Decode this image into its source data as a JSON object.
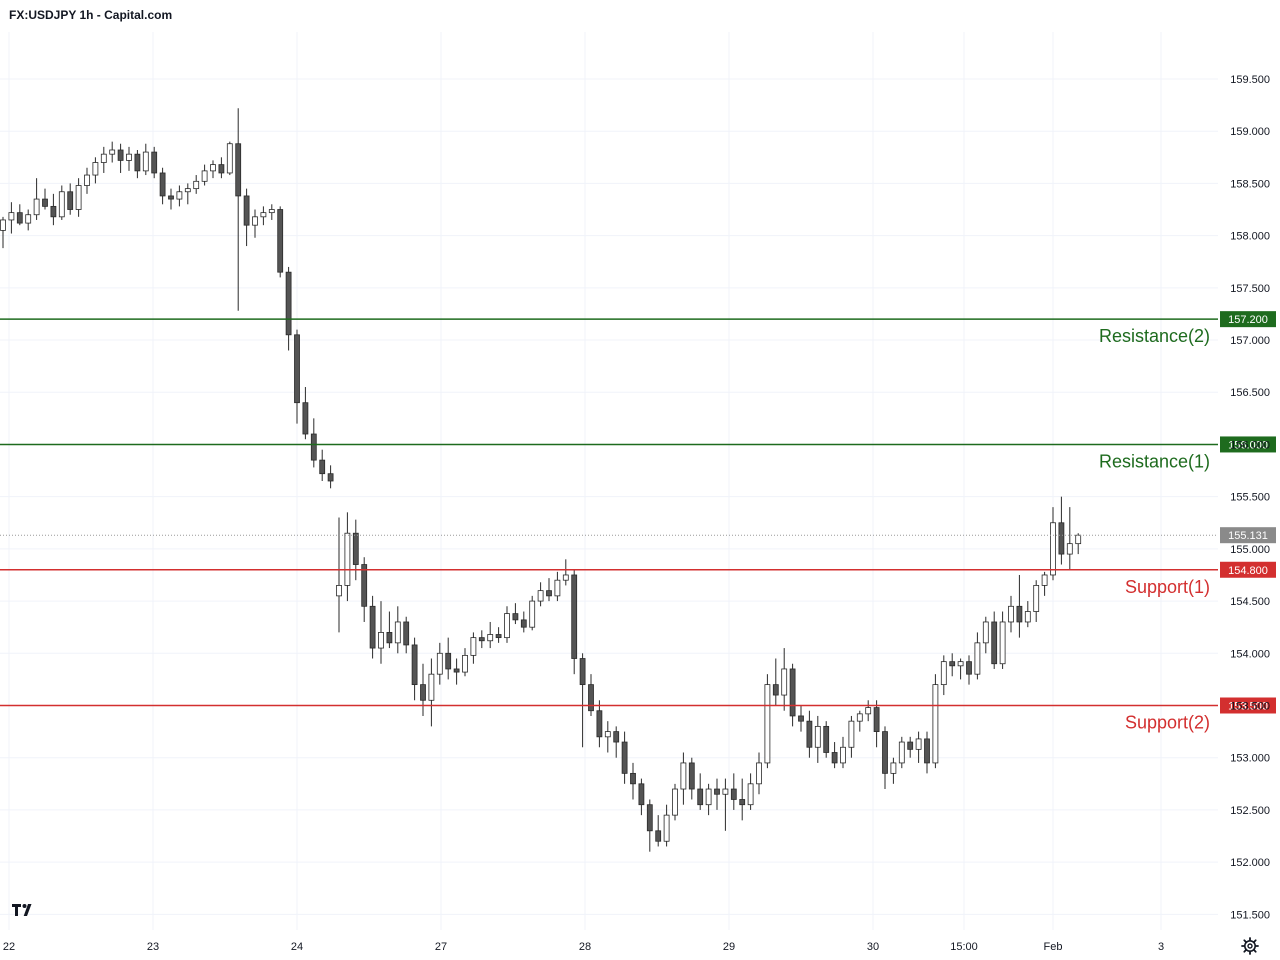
{
  "header": {
    "title": "FX:USDJPY 1h - Capital.com"
  },
  "colors": {
    "resistance": "#1e6b1e",
    "support": "#d32f2f",
    "candle_up_body": "#ffffff",
    "candle_down_body": "#545454",
    "wick": "#2a2a2a",
    "last_price_bg": "#8a8a8a",
    "grid": "#f0f3fa"
  },
  "chart_data": {
    "type": "candlestick",
    "title": "FX:USDJPY 1h - Capital.com",
    "ylim": [
      151.35,
      159.95
    ],
    "y_ticks": [
      "151.500",
      "152.000",
      "152.500",
      "153.000",
      "153.500",
      "154.000",
      "154.500",
      "155.000",
      "155.500",
      "156.000",
      "156.500",
      "157.000",
      "157.500",
      "158.000",
      "158.500",
      "159.000",
      "159.500"
    ],
    "x_ticks": [
      "22",
      "23",
      "24",
      "27",
      "28",
      "29",
      "30",
      "15:00",
      "Feb",
      "3"
    ],
    "grid": true,
    "last_price": "155.131",
    "levels": [
      {
        "name": "Resistance(2)",
        "value": 157.2,
        "value_label": "157.200",
        "kind": "resistance"
      },
      {
        "name": "Resistance(1)",
        "value": 156.0,
        "value_label": "156.000",
        "kind": "resistance"
      },
      {
        "name": "Support(1)",
        "value": 154.8,
        "value_label": "154.800",
        "kind": "support"
      },
      {
        "name": "Support(2)",
        "value": 153.5,
        "value_label": "153.500",
        "kind": "support"
      }
    ],
    "candles": [
      [
        158.05,
        158.18,
        157.88,
        158.15
      ],
      [
        158.15,
        158.32,
        158.02,
        158.22
      ],
      [
        158.22,
        158.3,
        158.1,
        158.12
      ],
      [
        158.12,
        158.25,
        158.05,
        158.2
      ],
      [
        158.2,
        158.55,
        158.15,
        158.35
      ],
      [
        158.35,
        158.45,
        158.25,
        158.28
      ],
      [
        158.28,
        158.4,
        158.1,
        158.18
      ],
      [
        158.18,
        158.48,
        158.15,
        158.42
      ],
      [
        158.42,
        158.5,
        158.2,
        158.25
      ],
      [
        158.25,
        158.55,
        158.18,
        158.48
      ],
      [
        158.48,
        158.65,
        158.4,
        158.58
      ],
      [
        158.58,
        158.75,
        158.5,
        158.7
      ],
      [
        158.7,
        158.85,
        158.6,
        158.78
      ],
      [
        158.78,
        158.9,
        158.7,
        158.82
      ],
      [
        158.82,
        158.88,
        158.6,
        158.72
      ],
      [
        158.72,
        158.85,
        158.62,
        158.78
      ],
      [
        158.78,
        158.82,
        158.55,
        158.62
      ],
      [
        158.62,
        158.88,
        158.58,
        158.8
      ],
      [
        158.8,
        158.85,
        158.55,
        158.6
      ],
      [
        158.6,
        158.65,
        158.3,
        158.38
      ],
      [
        158.38,
        158.45,
        158.25,
        158.35
      ],
      [
        158.35,
        158.48,
        158.28,
        158.42
      ],
      [
        158.42,
        158.5,
        158.3,
        158.45
      ],
      [
        158.45,
        158.58,
        158.4,
        158.52
      ],
      [
        158.52,
        158.68,
        158.48,
        158.62
      ],
      [
        158.62,
        158.72,
        158.55,
        158.68
      ],
      [
        158.68,
        158.75,
        158.55,
        158.6
      ],
      [
        158.6,
        158.9,
        158.58,
        158.88
      ],
      [
        158.88,
        159.22,
        157.28,
        158.38
      ],
      [
        158.38,
        158.45,
        157.9,
        158.1
      ],
      [
        158.1,
        158.25,
        157.98,
        158.18
      ],
      [
        158.18,
        158.28,
        158.1,
        158.22
      ],
      [
        158.22,
        158.3,
        158.15,
        158.25
      ],
      [
        158.25,
        158.28,
        157.6,
        157.65
      ],
      [
        157.65,
        157.7,
        156.9,
        157.05
      ],
      [
        157.05,
        157.1,
        156.2,
        156.4
      ],
      [
        156.4,
        156.55,
        156.05,
        156.1
      ],
      [
        156.1,
        156.25,
        155.78,
        155.85
      ],
      [
        155.85,
        155.95,
        155.65,
        155.72
      ],
      [
        155.72,
        155.8,
        155.58,
        155.65
      ],
      [
        154.55,
        155.3,
        154.2,
        154.65
      ],
      [
        154.65,
        155.35,
        154.5,
        155.15
      ],
      [
        155.15,
        155.28,
        154.7,
        154.85
      ],
      [
        154.85,
        154.92,
        154.3,
        154.45
      ],
      [
        154.45,
        154.55,
        153.95,
        154.05
      ],
      [
        154.05,
        154.5,
        153.9,
        154.2
      ],
      [
        154.2,
        154.4,
        154.05,
        154.1
      ],
      [
        154.1,
        154.45,
        154.0,
        154.3
      ],
      [
        154.3,
        154.35,
        154.0,
        154.08
      ],
      [
        154.08,
        154.15,
        153.55,
        153.7
      ],
      [
        153.7,
        153.9,
        153.4,
        153.55
      ],
      [
        153.55,
        153.95,
        153.3,
        153.8
      ],
      [
        153.8,
        154.1,
        153.7,
        154.0
      ],
      [
        154.0,
        154.15,
        153.75,
        153.85
      ],
      [
        153.85,
        153.95,
        153.7,
        153.82
      ],
      [
        153.82,
        154.05,
        153.78,
        153.98
      ],
      [
        153.98,
        154.2,
        153.9,
        154.15
      ],
      [
        154.15,
        154.22,
        154.05,
        154.12
      ],
      [
        154.12,
        154.3,
        154.05,
        154.18
      ],
      [
        154.18,
        154.25,
        154.1,
        154.15
      ],
      [
        154.15,
        154.45,
        154.1,
        154.38
      ],
      [
        154.38,
        154.48,
        154.28,
        154.32
      ],
      [
        154.32,
        154.4,
        154.2,
        154.25
      ],
      [
        154.25,
        154.55,
        154.22,
        154.5
      ],
      [
        154.5,
        154.68,
        154.45,
        154.6
      ],
      [
        154.6,
        154.72,
        154.5,
        154.55
      ],
      [
        154.55,
        154.78,
        154.5,
        154.7
      ],
      [
        154.7,
        154.9,
        154.65,
        154.75
      ],
      [
        154.75,
        154.8,
        153.8,
        153.95
      ],
      [
        153.95,
        154.0,
        153.1,
        153.7
      ],
      [
        153.7,
        153.8,
        153.4,
        153.45
      ],
      [
        153.45,
        153.55,
        153.1,
        153.2
      ],
      [
        153.2,
        153.35,
        153.05,
        153.25
      ],
      [
        153.25,
        153.3,
        153.0,
        153.15
      ],
      [
        153.15,
        153.25,
        152.75,
        152.85
      ],
      [
        152.85,
        152.95,
        152.6,
        152.75
      ],
      [
        152.75,
        152.8,
        152.45,
        152.55
      ],
      [
        152.55,
        152.6,
        152.1,
        152.3
      ],
      [
        152.3,
        152.45,
        152.15,
        152.2
      ],
      [
        152.2,
        152.55,
        152.15,
        152.45
      ],
      [
        152.45,
        152.75,
        152.4,
        152.7
      ],
      [
        152.7,
        153.05,
        152.55,
        152.95
      ],
      [
        152.95,
        153.0,
        152.6,
        152.7
      ],
      [
        152.7,
        152.85,
        152.5,
        152.55
      ],
      [
        152.55,
        152.75,
        152.45,
        152.7
      ],
      [
        152.7,
        152.8,
        152.5,
        152.65
      ],
      [
        152.65,
        152.8,
        152.3,
        152.7
      ],
      [
        152.7,
        152.85,
        152.5,
        152.6
      ],
      [
        152.6,
        152.8,
        152.4,
        152.55
      ],
      [
        152.55,
        152.85,
        152.5,
        152.75
      ],
      [
        152.75,
        153.05,
        152.65,
        152.95
      ],
      [
        152.95,
        153.8,
        152.9,
        153.7
      ],
      [
        153.7,
        153.95,
        153.5,
        153.6
      ],
      [
        153.6,
        154.05,
        153.45,
        153.85
      ],
      [
        153.85,
        153.9,
        153.3,
        153.4
      ],
      [
        153.4,
        153.5,
        153.25,
        153.35
      ],
      [
        153.35,
        153.45,
        153.0,
        153.1
      ],
      [
        153.1,
        153.4,
        152.95,
        153.3
      ],
      [
        153.3,
        153.35,
        153.0,
        153.05
      ],
      [
        153.05,
        153.15,
        152.9,
        152.95
      ],
      [
        152.95,
        153.2,
        152.9,
        153.1
      ],
      [
        153.1,
        153.4,
        153.0,
        153.35
      ],
      [
        153.35,
        153.45,
        153.25,
        153.42
      ],
      [
        153.42,
        153.55,
        153.35,
        153.48
      ],
      [
        153.48,
        153.55,
        153.1,
        153.25
      ],
      [
        153.25,
        153.3,
        152.7,
        152.85
      ],
      [
        152.85,
        153.0,
        152.75,
        152.95
      ],
      [
        152.95,
        153.2,
        152.9,
        153.15
      ],
      [
        153.15,
        153.2,
        153.0,
        153.08
      ],
      [
        153.08,
        153.25,
        152.95,
        153.18
      ],
      [
        153.18,
        153.25,
        152.85,
        152.95
      ],
      [
        152.95,
        153.8,
        152.9,
        153.7
      ],
      [
        153.7,
        153.98,
        153.6,
        153.92
      ],
      [
        153.92,
        154.0,
        153.78,
        153.88
      ],
      [
        153.88,
        153.95,
        153.75,
        153.92
      ],
      [
        153.92,
        153.98,
        153.7,
        153.8
      ],
      [
        153.8,
        154.2,
        153.75,
        154.1
      ],
      [
        154.1,
        154.35,
        154.0,
        154.3
      ],
      [
        154.3,
        154.4,
        153.85,
        153.9
      ],
      [
        153.9,
        154.4,
        153.85,
        154.3
      ],
      [
        154.3,
        154.55,
        154.2,
        154.45
      ],
      [
        154.45,
        154.75,
        154.15,
        154.3
      ],
      [
        154.3,
        154.5,
        154.25,
        154.4
      ],
      [
        154.4,
        154.7,
        154.3,
        154.65
      ],
      [
        154.65,
        154.78,
        154.55,
        154.75
      ],
      [
        154.75,
        155.4,
        154.7,
        155.25
      ],
      [
        155.25,
        155.5,
        154.85,
        154.95
      ],
      [
        154.95,
        155.4,
        154.8,
        155.05
      ],
      [
        155.05,
        155.15,
        154.95,
        155.131
      ]
    ]
  }
}
